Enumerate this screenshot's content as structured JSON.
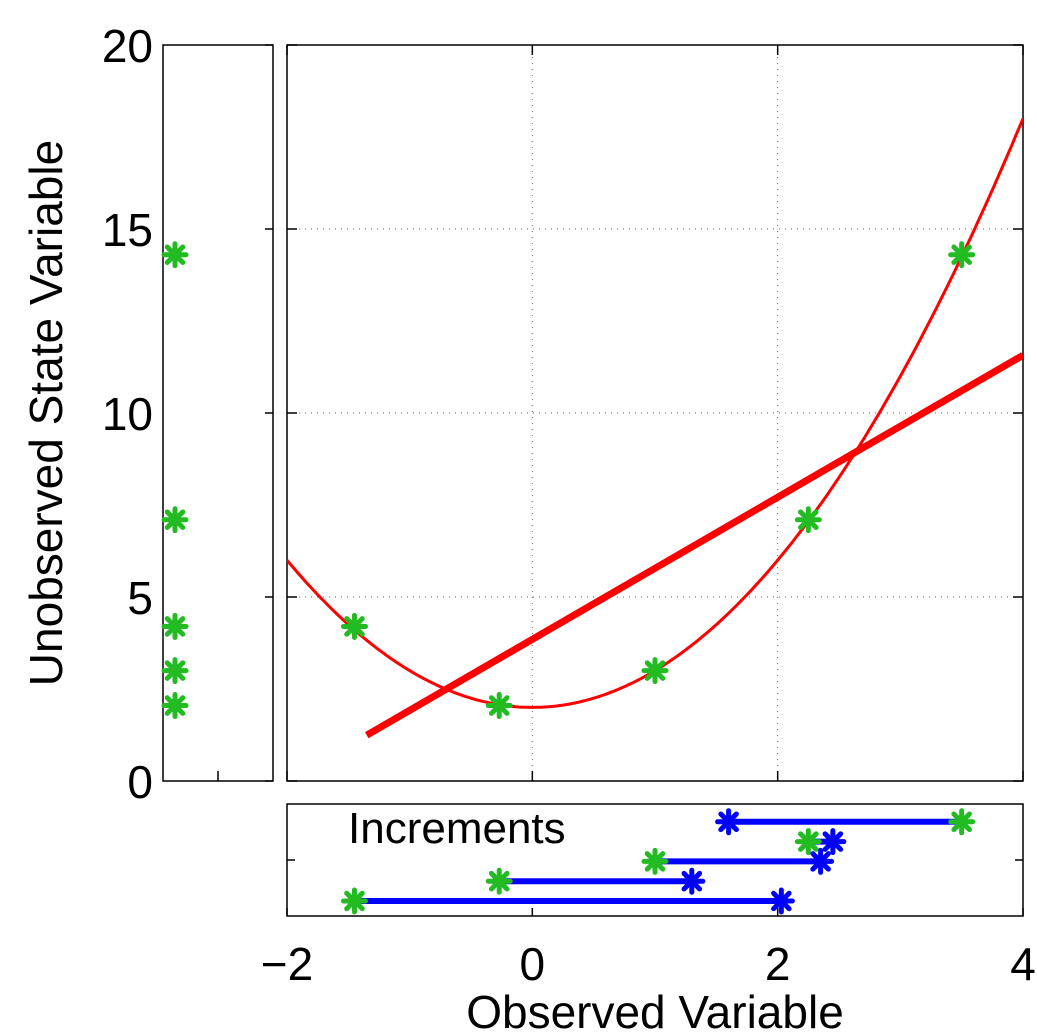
{
  "chart_data": {
    "type": "scatter",
    "xlabel": "Observed Variable",
    "ylabel": "Unobserved State Variable",
    "xlim": [
      -2,
      4
    ],
    "ylim": [
      0,
      20
    ],
    "xticks": [
      -2,
      0,
      2,
      4
    ],
    "yticks": [
      0,
      5,
      10,
      15,
      20
    ],
    "x_tick_labels": [
      "−2",
      "0",
      "2",
      "4"
    ],
    "y_tick_labels": [
      "0",
      "5",
      "10",
      "15",
      "20"
    ],
    "grid": true,
    "annotation": "Increments",
    "colors": {
      "ensemble": "#22bb22",
      "increments": "#0000ff",
      "fit": "#ff0000"
    },
    "ensemble_points": [
      {
        "x": -1.45,
        "y": 4.2
      },
      {
        "x": -0.27,
        "y": 2.05
      },
      {
        "x": 1.0,
        "y": 3.0
      },
      {
        "x": 2.25,
        "y": 7.1
      },
      {
        "x": 3.5,
        "y": 14.3
      }
    ],
    "marginal_y_points": [
      14.3,
      7.1,
      4.2,
      3.0,
      2.05
    ],
    "curve": {
      "name": "quadratic",
      "a": 1.0,
      "b": 0.0,
      "c": 2.0,
      "x_range": [
        -2,
        4
      ]
    },
    "regression_line": {
      "name": "linear fit",
      "slope": 1.93,
      "intercept": 3.85,
      "x_range": [
        -1.35,
        4
      ]
    },
    "increments": [
      {
        "prior": 3.5,
        "posterior": 1.6,
        "row": 4
      },
      {
        "prior": 2.25,
        "posterior": 2.45,
        "row": 3
      },
      {
        "prior": 1.0,
        "posterior": 2.35,
        "row": 2
      },
      {
        "prior": -0.27,
        "posterior": 1.3,
        "row": 1
      },
      {
        "prior": -1.45,
        "posterior": 2.03,
        "row": 0
      }
    ]
  }
}
